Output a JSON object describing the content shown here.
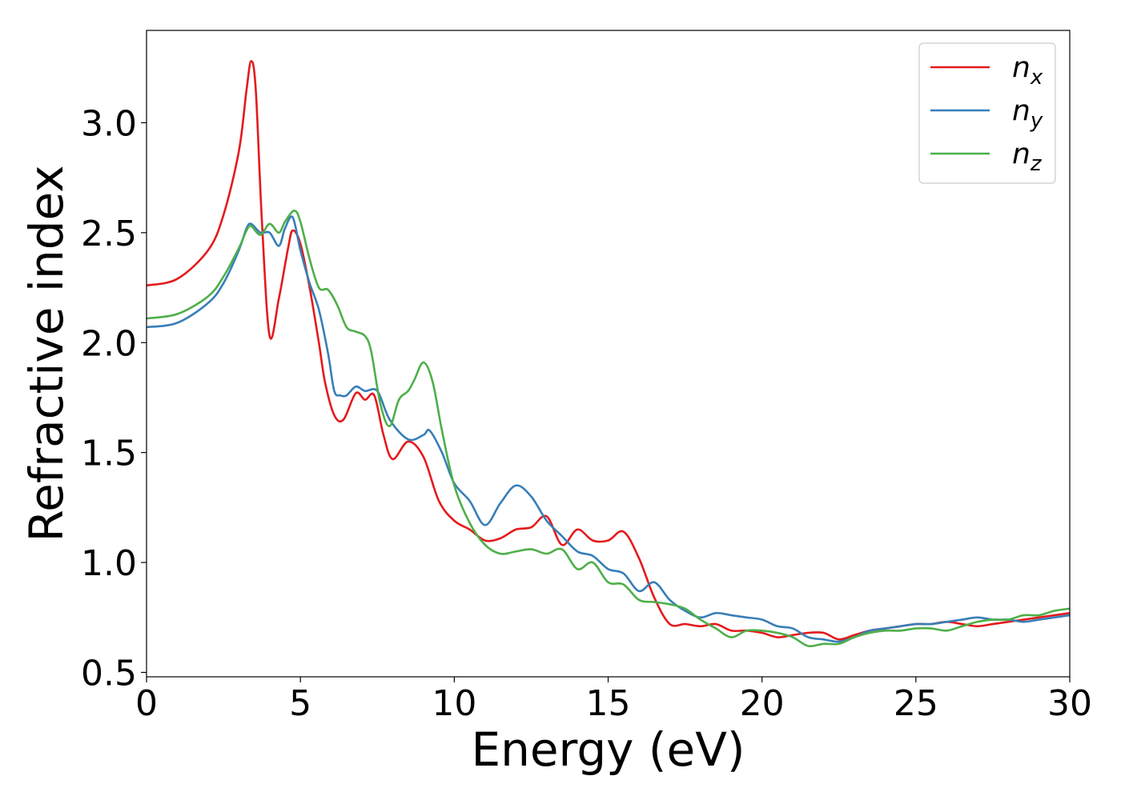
{
  "chart_data": {
    "type": "line",
    "title": "",
    "xlabel": "Energy (eV)",
    "ylabel": "Refractive index",
    "xlim": [
      0,
      30
    ],
    "ylim": [
      0.48,
      3.42
    ],
    "xticks": [
      0,
      5,
      10,
      15,
      20,
      25,
      30
    ],
    "xtick_labels": [
      "0",
      "5",
      "10",
      "15",
      "20",
      "25",
      "30"
    ],
    "yticks": [
      0.5,
      1.0,
      1.5,
      2.0,
      2.5,
      3.0
    ],
    "ytick_labels": [
      "0.5",
      "1.0",
      "1.5",
      "2.0",
      "2.5",
      "3.0"
    ],
    "grid": false,
    "legend_position": "top-right",
    "series": [
      {
        "name": "n",
        "subscript": "x",
        "color": "#e41a1c",
        "x": [
          0,
          1.0,
          2.0,
          2.5,
          3.0,
          3.25,
          3.4,
          3.55,
          3.75,
          4.0,
          4.3,
          4.6,
          4.75,
          5.0,
          5.3,
          5.6,
          5.8,
          6.1,
          6.4,
          6.8,
          7.1,
          7.4,
          7.7,
          8.0,
          8.5,
          9.0,
          9.5,
          10.0,
          10.5,
          11.0,
          11.5,
          12.0,
          12.5,
          13.0,
          13.5,
          14.0,
          14.5,
          15.0,
          15.5,
          16.0,
          16.5,
          17.0,
          17.5,
          18.0,
          18.5,
          19.0,
          19.5,
          20.0,
          20.5,
          21.0,
          21.5,
          22.0,
          22.5,
          23.0,
          23.5,
          24.0,
          24.5,
          25.0,
          25.5,
          26.0,
          26.5,
          27.0,
          27.5,
          28.0,
          28.5,
          29.0,
          29.5,
          30.0
        ],
        "y": [
          2.26,
          2.29,
          2.42,
          2.58,
          2.87,
          3.15,
          3.28,
          3.15,
          2.55,
          2.03,
          2.2,
          2.43,
          2.51,
          2.45,
          2.25,
          2.0,
          1.82,
          1.67,
          1.65,
          1.77,
          1.74,
          1.76,
          1.58,
          1.47,
          1.55,
          1.48,
          1.28,
          1.19,
          1.15,
          1.1,
          1.11,
          1.15,
          1.16,
          1.21,
          1.08,
          1.15,
          1.1,
          1.1,
          1.14,
          1.02,
          0.84,
          0.72,
          0.72,
          0.71,
          0.72,
          0.69,
          0.69,
          0.68,
          0.66,
          0.67,
          0.68,
          0.68,
          0.65,
          0.67,
          0.69,
          0.7,
          0.71,
          0.72,
          0.72,
          0.73,
          0.72,
          0.71,
          0.72,
          0.73,
          0.74,
          0.75,
          0.76,
          0.77
        ]
      },
      {
        "name": "n",
        "subscript": "y",
        "color": "#377eb8",
        "x": [
          0,
          1.0,
          2.0,
          2.5,
          3.0,
          3.25,
          3.4,
          3.7,
          4.0,
          4.3,
          4.5,
          4.75,
          5.0,
          5.3,
          5.6,
          5.9,
          6.1,
          6.3,
          6.5,
          6.8,
          7.1,
          7.5,
          7.9,
          8.5,
          9.0,
          9.2,
          9.6,
          10.0,
          10.5,
          11.0,
          11.5,
          12.0,
          12.5,
          13.0,
          13.5,
          14.0,
          14.5,
          15.0,
          15.5,
          16.0,
          16.5,
          17.0,
          17.5,
          18.0,
          18.5,
          19.0,
          19.5,
          20.0,
          20.5,
          21.0,
          21.5,
          22.0,
          22.5,
          23.0,
          23.5,
          24.0,
          24.5,
          25.0,
          25.5,
          26.0,
          26.5,
          27.0,
          27.5,
          28.0,
          28.5,
          29.0,
          29.5,
          30.0
        ],
        "y": [
          2.07,
          2.09,
          2.18,
          2.27,
          2.42,
          2.52,
          2.54,
          2.5,
          2.5,
          2.44,
          2.52,
          2.57,
          2.42,
          2.27,
          2.15,
          1.95,
          1.78,
          1.76,
          1.76,
          1.8,
          1.78,
          1.78,
          1.65,
          1.56,
          1.58,
          1.6,
          1.5,
          1.36,
          1.28,
          1.17,
          1.27,
          1.35,
          1.3,
          1.19,
          1.12,
          1.05,
          1.03,
          0.97,
          0.95,
          0.87,
          0.91,
          0.83,
          0.78,
          0.75,
          0.77,
          0.76,
          0.75,
          0.74,
          0.71,
          0.7,
          0.66,
          0.65,
          0.64,
          0.66,
          0.69,
          0.7,
          0.71,
          0.72,
          0.72,
          0.73,
          0.74,
          0.75,
          0.74,
          0.74,
          0.73,
          0.74,
          0.75,
          0.76
        ]
      },
      {
        "name": "n",
        "subscript": "z",
        "color": "#4daf4a",
        "x": [
          0,
          1.0,
          2.0,
          2.5,
          3.0,
          3.25,
          3.4,
          3.7,
          4.0,
          4.3,
          4.5,
          4.8,
          5.0,
          5.3,
          5.6,
          5.9,
          6.2,
          6.5,
          6.8,
          7.1,
          7.3,
          7.6,
          7.9,
          8.2,
          8.5,
          8.7,
          9.0,
          9.3,
          9.6,
          10.0,
          10.5,
          11.0,
          11.5,
          12.0,
          12.5,
          13.0,
          13.5,
          14.0,
          14.5,
          15.0,
          15.5,
          16.0,
          16.5,
          17.0,
          17.5,
          18.0,
          18.5,
          19.0,
          19.5,
          20.0,
          20.5,
          21.0,
          21.5,
          22.0,
          22.5,
          23.0,
          23.5,
          24.0,
          24.5,
          25.0,
          25.5,
          26.0,
          26.5,
          27.0,
          27.5,
          28.0,
          28.5,
          29.0,
          29.5,
          30.0
        ],
        "y": [
          2.11,
          2.13,
          2.21,
          2.3,
          2.43,
          2.51,
          2.53,
          2.49,
          2.54,
          2.5,
          2.55,
          2.6,
          2.55,
          2.38,
          2.25,
          2.24,
          2.17,
          2.07,
          2.05,
          2.03,
          1.96,
          1.72,
          1.62,
          1.74,
          1.78,
          1.83,
          1.91,
          1.82,
          1.6,
          1.35,
          1.18,
          1.08,
          1.04,
          1.05,
          1.06,
          1.04,
          1.06,
          0.97,
          1.0,
          0.91,
          0.9,
          0.83,
          0.82,
          0.81,
          0.79,
          0.74,
          0.7,
          0.66,
          0.69,
          0.69,
          0.68,
          0.66,
          0.62,
          0.63,
          0.63,
          0.66,
          0.68,
          0.69,
          0.69,
          0.7,
          0.7,
          0.69,
          0.71,
          0.73,
          0.74,
          0.74,
          0.76,
          0.76,
          0.78,
          0.79
        ]
      }
    ]
  }
}
